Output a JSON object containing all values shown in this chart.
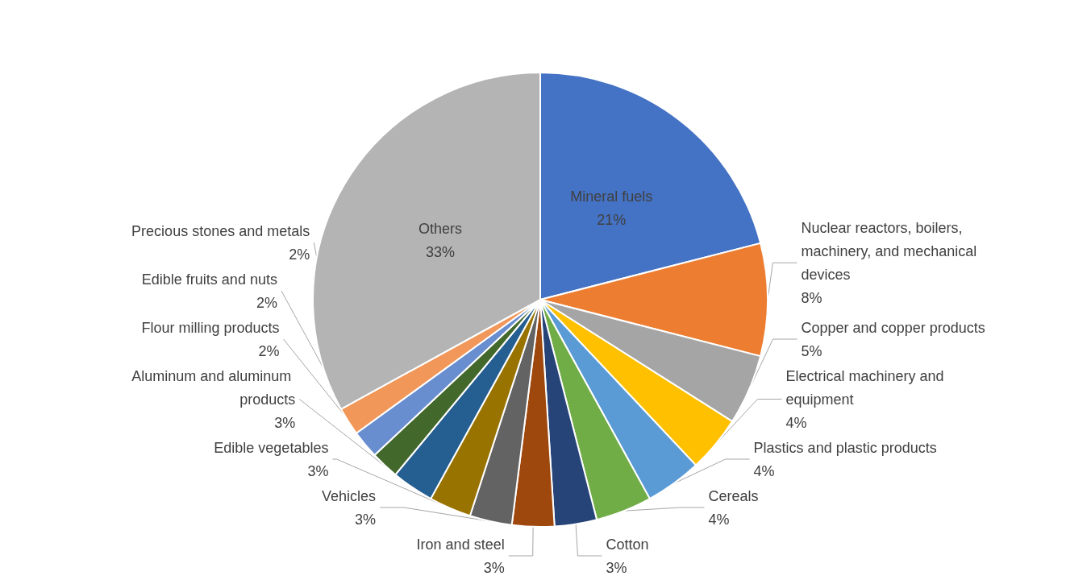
{
  "chart_data": {
    "type": "pie",
    "categories": [
      "Mineral fuels",
      "Nuclear reactors, boilers, machinery, and mechanical devices",
      "Copper and copper products",
      "Electrical machinery and equipment",
      "Plastics and plastic products",
      "Cereals",
      "Cotton",
      "Iron and steel",
      "Vehicles",
      "Edible vegetables",
      "Aluminum and aluminum products",
      "Flour milling products",
      "Edible fruits and nuts",
      "Precious stones and metals",
      "Others"
    ],
    "values": [
      21,
      8,
      5,
      4,
      4,
      4,
      3,
      3,
      3,
      3,
      3,
      2,
      2,
      2,
      33
    ],
    "colors": [
      "#4472c4",
      "#ed7d31",
      "#a5a5a5",
      "#ffc000",
      "#5b9bd5",
      "#70ad47",
      "#264478",
      "#9e480e",
      "#636363",
      "#997300",
      "#255e91",
      "#43682b",
      "#698ed0",
      "#f1975a",
      "#b4b4b4"
    ],
    "value_labels": [
      "21%",
      "8%",
      "5%",
      "4%",
      "4%",
      "4%",
      "3%",
      "3%",
      "3%",
      "3%",
      "3%",
      "2%",
      "2%",
      "2%",
      "33%"
    ],
    "legend": false
  }
}
